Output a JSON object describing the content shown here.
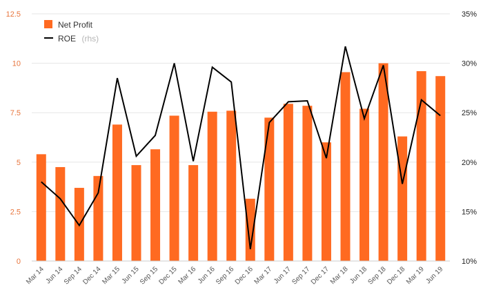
{
  "chart_data": {
    "type": "bar",
    "categories": [
      "Mar 14",
      "Jun 14",
      "Sep 14",
      "Dec 14",
      "Mar 15",
      "Jun 15",
      "Sep 15",
      "Dec 15",
      "Mar 16",
      "Jun 16",
      "Sep 16",
      "Dec 16",
      "Mar 17",
      "Jun 17",
      "Sep 17",
      "Dec 17",
      "Mar 18",
      "Jun 18",
      "Sep 18",
      "Dec 18",
      "Mar 19",
      "Jun 19"
    ],
    "series": [
      {
        "name": "Net Profit",
        "type": "bar",
        "axis": "left",
        "color": "#ff6a21",
        "values": [
          5.4,
          4.75,
          3.7,
          4.3,
          6.9,
          4.85,
          5.65,
          7.35,
          4.85,
          7.55,
          7.6,
          3.15,
          7.25,
          7.95,
          7.85,
          6.0,
          9.55,
          7.7,
          10.0,
          6.3,
          9.6,
          9.35
        ]
      },
      {
        "name": "ROE",
        "type": "line",
        "axis": "right",
        "color": "#000000",
        "values": [
          18.0,
          16.3,
          13.6,
          16.9,
          28.5,
          20.6,
          22.7,
          30.0,
          20.1,
          29.6,
          28.1,
          11.2,
          24.0,
          26.1,
          26.2,
          20.4,
          31.7,
          24.4,
          29.8,
          17.8,
          26.3,
          24.7
        ]
      }
    ],
    "left_axis": {
      "min": 0,
      "max": 12.5,
      "ticks": [
        "0",
        "2.5",
        "5",
        "7.5",
        "10",
        "12.5"
      ],
      "color": "#e8743b"
    },
    "right_axis": {
      "min": 10,
      "max": 35,
      "ticks": [
        "10%",
        "15%",
        "20%",
        "25%",
        "30%",
        "35%"
      ]
    },
    "legend": {
      "position": "top-left",
      "bar_label": "Net Profit",
      "line_label": "ROE",
      "line_suffix": "(rhs)"
    },
    "grid": true
  }
}
